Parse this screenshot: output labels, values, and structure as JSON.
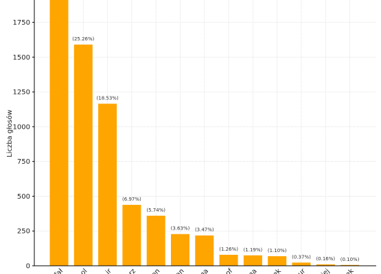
{
  "chart_data": {
    "type": "bar",
    "ylabel": "Liczba głosów",
    "ylim": [
      0,
      1950
    ],
    "yticks": [
      0,
      250,
      500,
      750,
      1000,
      1250,
      1500,
      1750
    ],
    "grid": true,
    "bar_color": "#FFA500",
    "categories": [
      "fał",
      "ol",
      "ir",
      "rz",
      "on",
      "an",
      "na",
      "of",
      "na",
      "ek",
      "ur",
      "iej",
      "ek"
    ],
    "values": [
      1960,
      1590,
      1165,
      438,
      360,
      228,
      218,
      79,
      75,
      69,
      23,
      10,
      6
    ],
    "labels": [
      "",
      "(25.26%)",
      "(18.53%)",
      "(6.97%)",
      "(5.74%)",
      "(3.63%)",
      "(3.47%)",
      "(1.26%)",
      "(1.19%)",
      "(1.10%)",
      "(0.37%)",
      "(0.16%)",
      "(0.10%)"
    ]
  }
}
